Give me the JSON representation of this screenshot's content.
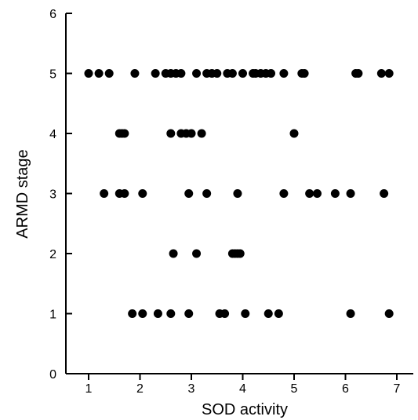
{
  "chart_data": {
    "type": "scatter",
    "title": "",
    "xlabel": "SOD activity",
    "ylabel": "ARMD stage",
    "xlim": [
      0.5,
      7.5
    ],
    "ylim": [
      0,
      6
    ],
    "xticks": [
      1,
      2,
      3,
      4,
      5,
      6,
      7
    ],
    "yticks": [
      0,
      1,
      2,
      3,
      4,
      5,
      6
    ],
    "grid": false,
    "marker_color": "#000000",
    "points": [
      [
        1.0,
        5
      ],
      [
        1.2,
        5
      ],
      [
        1.4,
        5
      ],
      [
        1.9,
        5
      ],
      [
        2.3,
        5
      ],
      [
        2.5,
        5
      ],
      [
        2.6,
        5
      ],
      [
        2.7,
        5
      ],
      [
        2.8,
        5
      ],
      [
        3.1,
        5
      ],
      [
        3.3,
        5
      ],
      [
        3.4,
        5
      ],
      [
        3.5,
        5
      ],
      [
        3.7,
        5
      ],
      [
        3.8,
        5
      ],
      [
        4.0,
        5
      ],
      [
        4.2,
        5
      ],
      [
        4.25,
        5
      ],
      [
        4.35,
        5
      ],
      [
        4.45,
        5
      ],
      [
        4.55,
        5
      ],
      [
        4.8,
        5
      ],
      [
        5.15,
        5
      ],
      [
        5.2,
        5
      ],
      [
        6.2,
        5
      ],
      [
        6.25,
        5
      ],
      [
        6.7,
        5
      ],
      [
        6.85,
        5
      ],
      [
        1.6,
        4
      ],
      [
        1.65,
        4
      ],
      [
        1.7,
        4
      ],
      [
        2.6,
        4
      ],
      [
        2.8,
        4
      ],
      [
        2.9,
        4
      ],
      [
        3.0,
        4
      ],
      [
        3.2,
        4
      ],
      [
        5.0,
        4
      ],
      [
        1.3,
        3
      ],
      [
        1.6,
        3
      ],
      [
        1.7,
        3
      ],
      [
        2.05,
        3
      ],
      [
        2.95,
        3
      ],
      [
        3.3,
        3
      ],
      [
        3.9,
        3
      ],
      [
        4.8,
        3
      ],
      [
        5.3,
        3
      ],
      [
        5.45,
        3
      ],
      [
        5.8,
        3
      ],
      [
        6.1,
        3
      ],
      [
        6.75,
        3
      ],
      [
        2.65,
        2
      ],
      [
        3.1,
        2
      ],
      [
        3.8,
        2
      ],
      [
        3.85,
        2
      ],
      [
        3.9,
        2
      ],
      [
        3.95,
        2
      ],
      [
        1.85,
        1
      ],
      [
        2.05,
        1
      ],
      [
        2.35,
        1
      ],
      [
        2.6,
        1
      ],
      [
        2.95,
        1
      ],
      [
        3.55,
        1
      ],
      [
        3.65,
        1
      ],
      [
        4.05,
        1
      ],
      [
        4.5,
        1
      ],
      [
        4.7,
        1
      ],
      [
        6.1,
        1
      ],
      [
        6.85,
        1
      ]
    ]
  }
}
